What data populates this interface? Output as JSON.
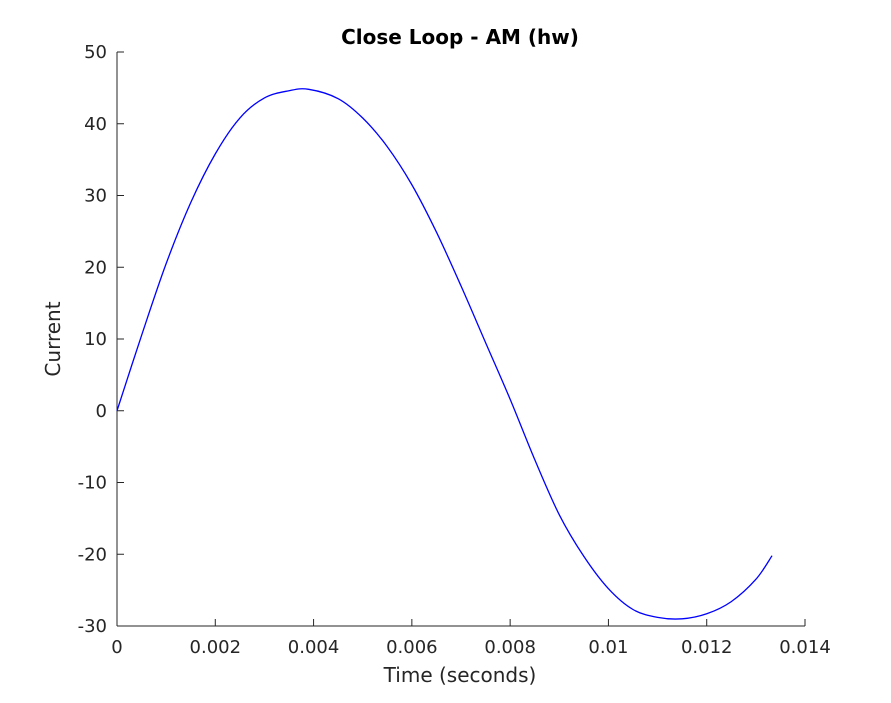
{
  "chart_data": {
    "type": "line",
    "title": "Close Loop - AM (hw)",
    "xlabel": "Time (seconds)",
    "ylabel": "Current",
    "xlim": [
      0,
      0.014
    ],
    "ylim": [
      -30,
      50
    ],
    "x_ticks": [
      "0",
      "0.002",
      "0.004",
      "0.006",
      "0.008",
      "0.01",
      "0.012",
      "0.014"
    ],
    "y_ticks": [
      "50",
      "40",
      "30",
      "20",
      "10",
      "0",
      "-10",
      "-20",
      "-30"
    ],
    "grid": false,
    "legend": "none",
    "series": [
      {
        "color": "#0000ff",
        "x": [
          0,
          0.0005,
          0.001,
          0.0015,
          0.002,
          0.0025,
          0.003,
          0.0035,
          0.0039,
          0.0045,
          0.005,
          0.0055,
          0.006,
          0.0065,
          0.007,
          0.0075,
          0.008,
          0.0085,
          0.009,
          0.0095,
          0.01,
          0.0105,
          0.011,
          0.0115,
          0.012,
          0.0125,
          0.013,
          0.01333
        ],
        "y": [
          0,
          10.5,
          20.5,
          29.0,
          35.8,
          40.8,
          43.6,
          44.6,
          44.8,
          43.5,
          40.8,
          36.8,
          31.5,
          24.9,
          17.4,
          9.5,
          1.6,
          -6.8,
          -14.5,
          -20.3,
          -24.8,
          -27.7,
          -28.8,
          -29.0,
          -28.3,
          -26.6,
          -23.5,
          -20.2
        ]
      }
    ]
  }
}
